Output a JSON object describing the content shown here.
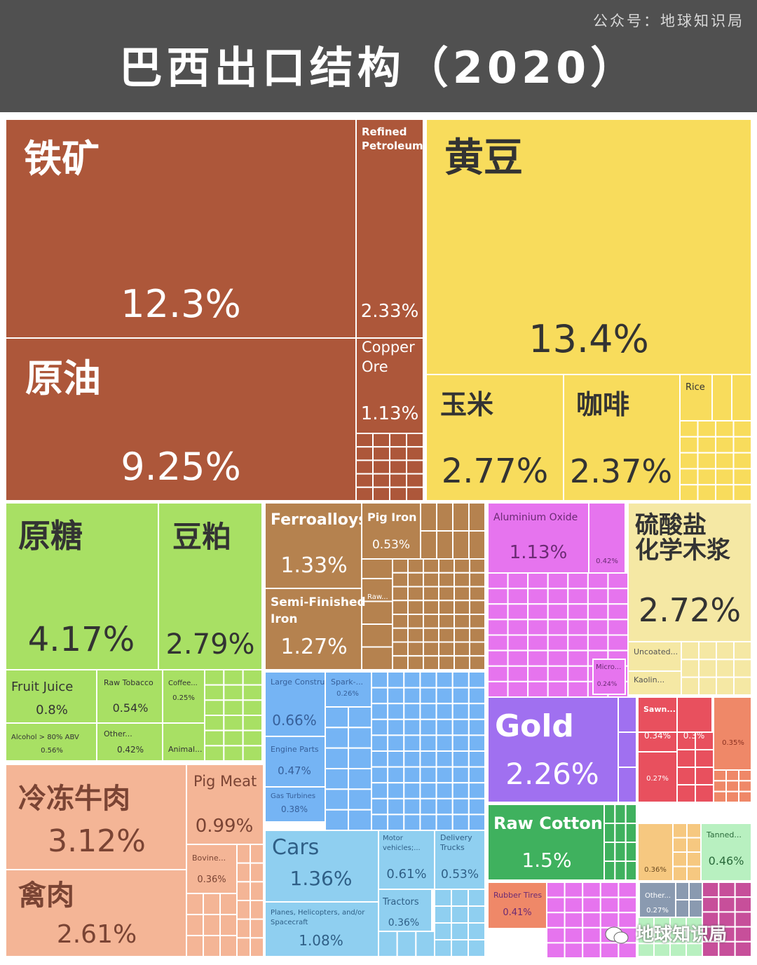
{
  "header": {
    "title": "巴西出口结构（2020）",
    "credit": "公众号：地球知识局"
  },
  "watermark": "地球知识局",
  "colors": {
    "mineral": "#ad573a",
    "vegetable": "#f8dc5c",
    "foodstuffs": "#a8e064",
    "metals": "#b5824f",
    "machines": "#75b4f4",
    "chemicals": "#e674ee",
    "paper": "#f5e8a4",
    "precious": "#a070f0",
    "textiles": "#3fb15e",
    "animal": "#f4b596",
    "transport": "#8fcff0",
    "wood": "#e8505e",
    "plastics": "#ef8868",
    "stone": "#f6c880",
    "hides": "#b8f0c0",
    "misc": "#c74f9a",
    "footwear": "#8a9ab0"
  },
  "chart_data": {
    "type": "treemap",
    "unit": "%",
    "items": [
      {
        "label": "铁矿",
        "value": 12.3,
        "group": "mineral"
      },
      {
        "label": "Refined Petroleum",
        "value": 2.33,
        "group": "mineral"
      },
      {
        "label": "原油",
        "value": 9.25,
        "group": "mineral"
      },
      {
        "label": "Copper Ore",
        "value": 1.13,
        "group": "mineral"
      },
      {
        "label": "黄豆",
        "value": 13.4,
        "group": "vegetable"
      },
      {
        "label": "玉米",
        "value": 2.77,
        "group": "vegetable"
      },
      {
        "label": "咖啡",
        "value": 2.37,
        "group": "vegetable"
      },
      {
        "label": "Rice",
        "value": null,
        "group": "vegetable"
      },
      {
        "label": "原糖",
        "value": 4.17,
        "group": "foodstuffs"
      },
      {
        "label": "豆粕",
        "value": 2.79,
        "group": "foodstuffs"
      },
      {
        "label": "Fruit Juice",
        "value": 0.8,
        "group": "foodstuffs"
      },
      {
        "label": "Raw Tobacco",
        "value": 0.54,
        "group": "foodstuffs"
      },
      {
        "label": "Coffee...",
        "value": 0.25,
        "group": "foodstuffs"
      },
      {
        "label": "Alcohol > 80% ABV",
        "value": 0.56,
        "group": "foodstuffs"
      },
      {
        "label": "Other...",
        "value": 0.42,
        "group": "foodstuffs"
      },
      {
        "label": "Animal...",
        "value": null,
        "group": "foodstuffs"
      },
      {
        "label": "Ferroalloys",
        "value": 1.33,
        "group": "metals"
      },
      {
        "label": "Pig Iron",
        "value": 0.53,
        "group": "metals"
      },
      {
        "label": "Raw...",
        "value": null,
        "group": "metals"
      },
      {
        "label": "Semi-Finished Iron",
        "value": 1.27,
        "group": "metals"
      },
      {
        "label": "Large Construction...",
        "value": 0.66,
        "group": "machines"
      },
      {
        "label": "Spark-...",
        "value": 0.26,
        "group": "machines"
      },
      {
        "label": "Engine Parts",
        "value": 0.47,
        "group": "machines"
      },
      {
        "label": "Gas Turbines",
        "value": 0.38,
        "group": "machines"
      },
      {
        "label": "Aluminium Oxide",
        "value": 1.13,
        "group": "chemicals"
      },
      {
        "label": "",
        "value": 0.42,
        "group": "chemicals"
      },
      {
        "label": "Micro...",
        "value": 0.24,
        "group": "chemicals"
      },
      {
        "label": "硫酸盐化学木浆",
        "value": 2.72,
        "group": "paper"
      },
      {
        "label": "Uncoated...",
        "value": null,
        "group": "paper"
      },
      {
        "label": "Kaolin...",
        "value": null,
        "group": "paper"
      },
      {
        "label": "Gold",
        "value": 2.26,
        "group": "precious"
      },
      {
        "label": "Raw Cotton",
        "value": 1.5,
        "group": "textiles"
      },
      {
        "label": "冷冻牛肉",
        "value": 3.12,
        "group": "animal"
      },
      {
        "label": "Pig Meat",
        "value": 0.99,
        "group": "animal"
      },
      {
        "label": "Bovine...",
        "value": 0.36,
        "group": "animal"
      },
      {
        "label": "禽肉",
        "value": 2.61,
        "group": "animal"
      },
      {
        "label": "Cars",
        "value": 1.36,
        "group": "transport"
      },
      {
        "label": "Motor vehicles;...",
        "value": 0.61,
        "group": "transport"
      },
      {
        "label": "Delivery Trucks",
        "value": 0.53,
        "group": "transport"
      },
      {
        "label": "Tractors",
        "value": 0.36,
        "group": "transport"
      },
      {
        "label": "Planes, Helicopters, and/or Spacecraft",
        "value": 1.08,
        "group": "transport"
      },
      {
        "label": "Rubber Tires",
        "value": 0.41,
        "group": "plastics"
      },
      {
        "label": "Sawn...",
        "value": 0.34,
        "group": "wood"
      },
      {
        "label": "",
        "value": 0.3,
        "group": "wood"
      },
      {
        "label": "",
        "value": 0.27,
        "group": "wood"
      },
      {
        "label": "",
        "value": 0.35,
        "group": "plastics"
      },
      {
        "label": "",
        "value": 0.36,
        "group": "stone"
      },
      {
        "label": "Tanned...",
        "value": 0.46,
        "group": "hides"
      },
      {
        "label": "Other...",
        "value": 0.27,
        "group": "footwear"
      }
    ]
  }
}
